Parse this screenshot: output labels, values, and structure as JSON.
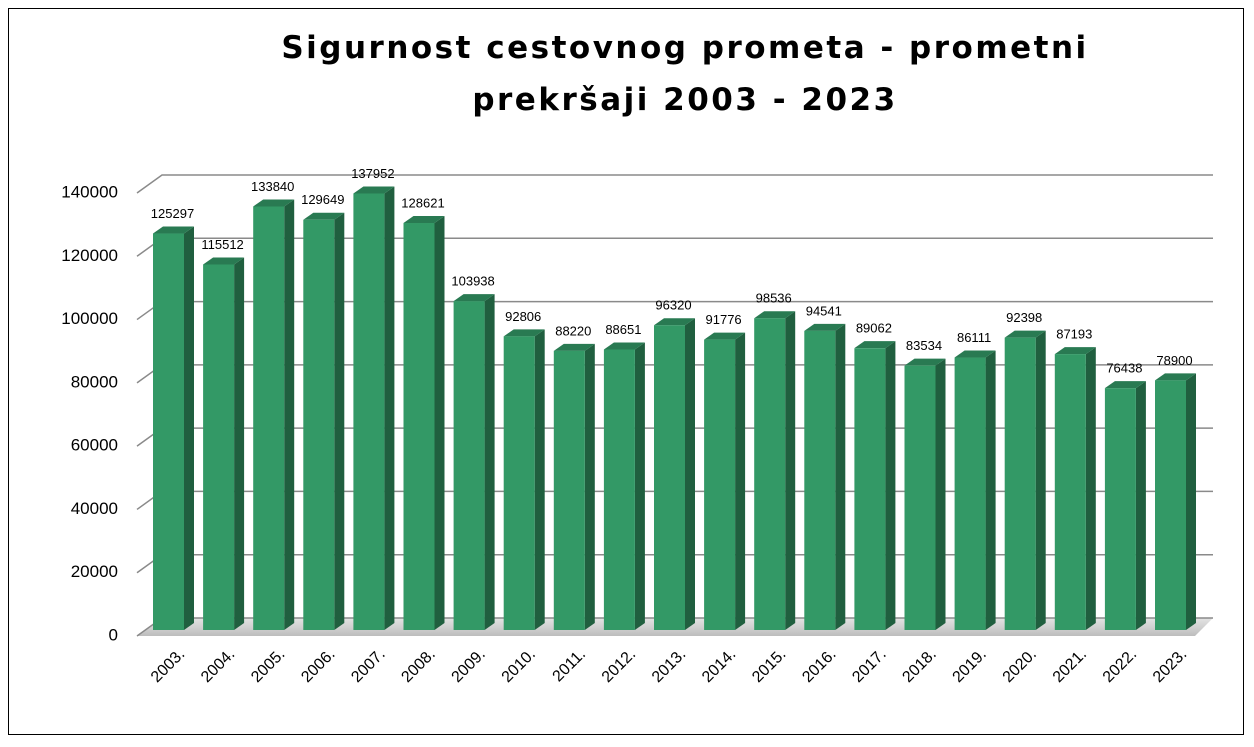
{
  "chart_data": {
    "type": "bar",
    "title": "Sigurnost cestovnog prometa - prometni prekršaji 2003 - 2023",
    "categories": [
      "2003.",
      "2004.",
      "2005.",
      "2006.",
      "2007.",
      "2008.",
      "2009.",
      "2010.",
      "2011.",
      "2012.",
      "2013.",
      "2014.",
      "2015.",
      "2016.",
      "2017.",
      "2018.",
      "2019.",
      "2020.",
      "2021.",
      "2022.",
      "2023."
    ],
    "values": [
      125297,
      115512,
      133840,
      129649,
      137952,
      128621,
      103938,
      92806,
      88220,
      88651,
      96320,
      91776,
      98536,
      94541,
      89062,
      83534,
      86111,
      92398,
      87193,
      76438,
      78900
    ],
    "color": "#339966",
    "ylim": [
      0,
      140000
    ],
    "yticks": [
      0,
      20000,
      40000,
      60000,
      80000,
      100000,
      120000,
      140000
    ],
    "grid": true
  }
}
